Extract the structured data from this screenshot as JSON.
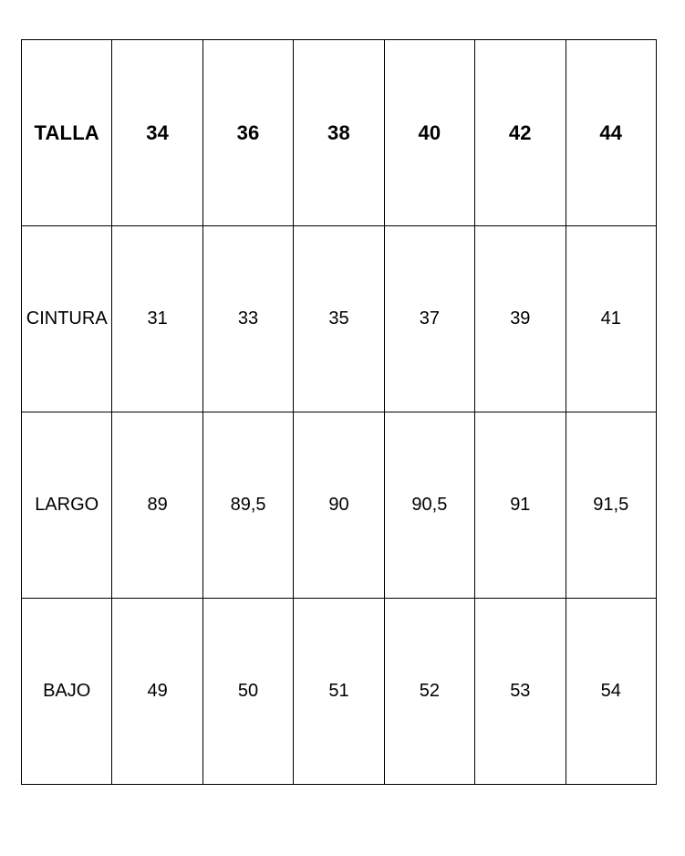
{
  "page": {
    "background_color": "#ffffff",
    "text_color": "#000000",
    "border_color": "#000000"
  },
  "table": {
    "header": [
      "TALLA",
      "34",
      "36",
      "38",
      "40",
      "42",
      "44"
    ],
    "rows": [
      [
        "CINTURA",
        "31",
        "33",
        "35",
        "37",
        "39",
        "41"
      ],
      [
        "LARGO",
        "89",
        "89,5",
        "90",
        "90,5",
        "91",
        "91,5"
      ],
      [
        "BAJO",
        "49",
        "50",
        "51",
        "52",
        "53",
        "54"
      ]
    ]
  },
  "chart_data": {
    "type": "table",
    "title": "",
    "columns": [
      "TALLA",
      "34",
      "36",
      "38",
      "40",
      "42",
      "44"
    ],
    "rows": [
      {
        "label": "CINTURA",
        "values": [
          31,
          33,
          35,
          37,
          39,
          41
        ]
      },
      {
        "label": "LARGO",
        "values": [
          89,
          89.5,
          90,
          90.5,
          91,
          91.5
        ]
      },
      {
        "label": "BAJO",
        "values": [
          49,
          50,
          51,
          52,
          53,
          54
        ]
      }
    ],
    "notes": "Decimal values displayed with comma separator (e.g. 89,5)"
  }
}
